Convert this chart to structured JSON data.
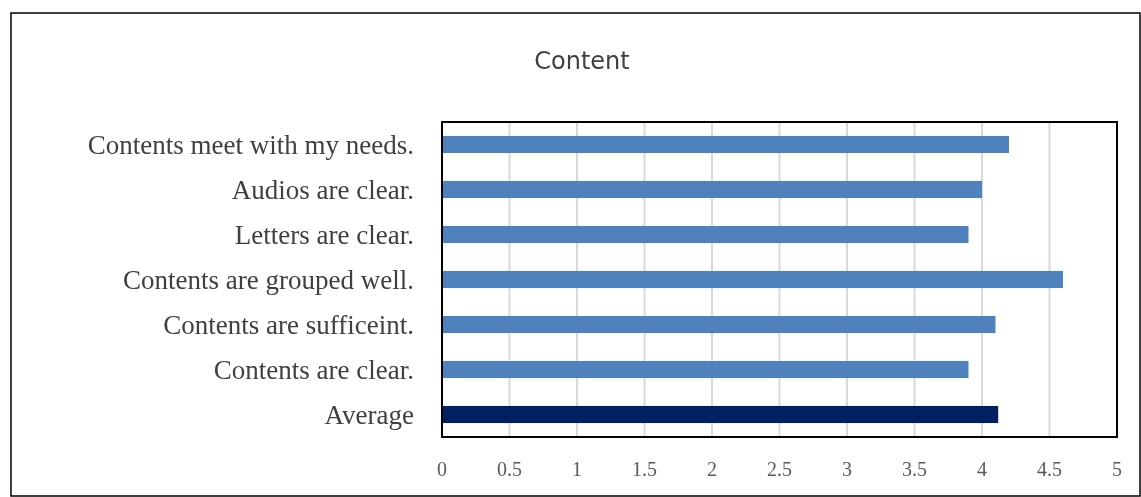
{
  "chart_data": {
    "type": "bar",
    "orientation": "horizontal",
    "title": "Content",
    "categories": [
      "Contents meet with my needs.",
      "Audios are clear.",
      "Letters are clear.",
      "Contents are grouped well.",
      "Contents are sufficeint.",
      "Contents are clear.",
      "Average"
    ],
    "values": [
      4.2,
      4.0,
      3.9,
      4.6,
      4.1,
      3.9,
      4.12
    ],
    "colors": [
      "#4f81bd",
      "#4f81bd",
      "#4f81bd",
      "#4f81bd",
      "#4f81bd",
      "#4f81bd",
      "#002060"
    ],
    "xlim": [
      0,
      5
    ],
    "xticks": [
      0,
      0.5,
      1,
      1.5,
      2,
      2.5,
      3,
      3.5,
      4,
      4.5,
      5
    ],
    "grid": "x"
  }
}
